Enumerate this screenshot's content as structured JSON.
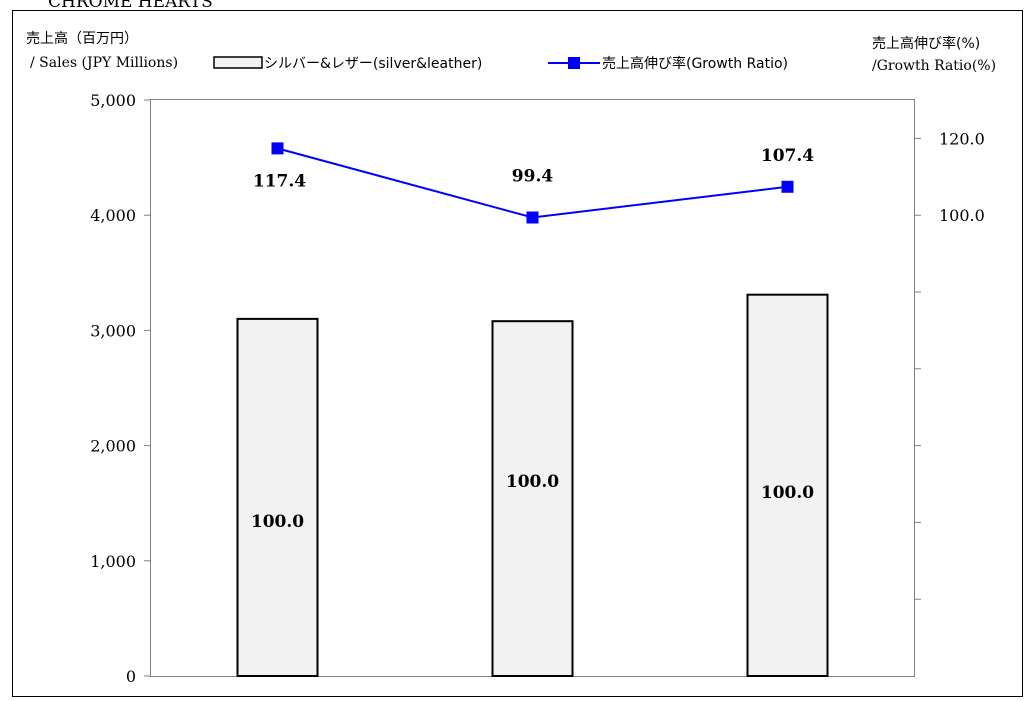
{
  "chart_data": {
    "type": "bar",
    "title": "CHROME HEARTS",
    "categories": [
      "",
      "",
      ""
    ],
    "series": [
      {
        "name": "シルバー&レザー(silver&leather)",
        "type": "bar",
        "axis": "left",
        "values": [
          3100,
          3080,
          3310
        ],
        "data_labels": [
          "100.0",
          "100.0",
          "100.0"
        ]
      },
      {
        "name": "売上高伸び率(Growth Ratio)",
        "type": "line",
        "axis": "right",
        "values": [
          117.4,
          99.4,
          107.4
        ],
        "data_labels": [
          "117.4",
          "99.4",
          "107.4"
        ],
        "color": "#0000ff"
      }
    ],
    "y_left": {
      "label_line1": "売上高（百万円）",
      "label_line2": "/ Sales (JPY Millions)",
      "ylim": [
        0,
        5000
      ],
      "ticks": [
        0,
        1000,
        2000,
        3000,
        4000,
        5000
      ],
      "tick_labels": [
        "0",
        "1,000",
        "2,000",
        "3,000",
        "4,000",
        "5,000"
      ]
    },
    "y_right": {
      "label_line1": "売上高伸び率(%)",
      "label_line2": "/Growth Ratio(%)",
      "ylim": [
        -20,
        130
      ],
      "ticks": [
        0,
        20,
        40,
        60,
        80,
        100,
        120
      ],
      "tick_labels": [
        "",
        "",
        "",
        "",
        "",
        "100.0",
        "120.0"
      ]
    },
    "legend_position": "top",
    "grid": false,
    "colors": {
      "bar_fill": "#f2f2f2",
      "bar_stroke": "#000000",
      "line": "#0000ff",
      "axis": "#808080"
    }
  }
}
